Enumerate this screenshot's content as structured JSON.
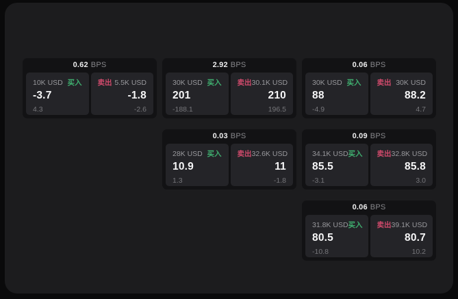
{
  "window": {
    "background": "#0a0a0b",
    "panel_background": "#1c1c1e",
    "card_background": "#121214",
    "pane_background": "#242428"
  },
  "labels": {
    "bps_unit": "BPS",
    "buy": "买入",
    "sell": "卖出"
  },
  "colors": {
    "buy_green": "#3fae6f",
    "sell_red": "#cf4a6b"
  },
  "cards": [
    {
      "grid": {
        "col": 1,
        "row": 1
      },
      "bps": "0.62",
      "buy": {
        "notional": "10K USD",
        "price": "-3.7",
        "delta": "4.3"
      },
      "sell": {
        "notional": "5.5K USD",
        "price": "-1.8",
        "delta": "-2.6"
      }
    },
    {
      "grid": {
        "col": 2,
        "row": 1
      },
      "bps": "2.92",
      "buy": {
        "notional": "30K USD",
        "price": "201",
        "delta": "-188.1"
      },
      "sell": {
        "notional": "30.1K USD",
        "price": "210",
        "delta": "196.5"
      }
    },
    {
      "grid": {
        "col": 3,
        "row": 1
      },
      "bps": "0.06",
      "buy": {
        "notional": "30K USD",
        "price": "88",
        "delta": "-4.9"
      },
      "sell": {
        "notional": "30K USD",
        "price": "88.2",
        "delta": "4.7"
      }
    },
    {
      "grid": {
        "col": 2,
        "row": 2
      },
      "bps": "0.03",
      "buy": {
        "notional": "28K USD",
        "price": "10.9",
        "delta": "1.3"
      },
      "sell": {
        "notional": "32.6K USD",
        "price": "11",
        "delta": "-1.8"
      }
    },
    {
      "grid": {
        "col": 3,
        "row": 2
      },
      "bps": "0.09",
      "buy": {
        "notional": "34.1K USD",
        "price": "85.5",
        "delta": "-3.1"
      },
      "sell": {
        "notional": "32.8K USD",
        "price": "85.8",
        "delta": "3.0"
      }
    },
    {
      "grid": {
        "col": 3,
        "row": 3
      },
      "bps": "0.06",
      "buy": {
        "notional": "31.8K USD",
        "price": "80.5",
        "delta": "-10.8"
      },
      "sell": {
        "notional": "39.1K USD",
        "price": "80.7",
        "delta": "10.2"
      }
    }
  ]
}
